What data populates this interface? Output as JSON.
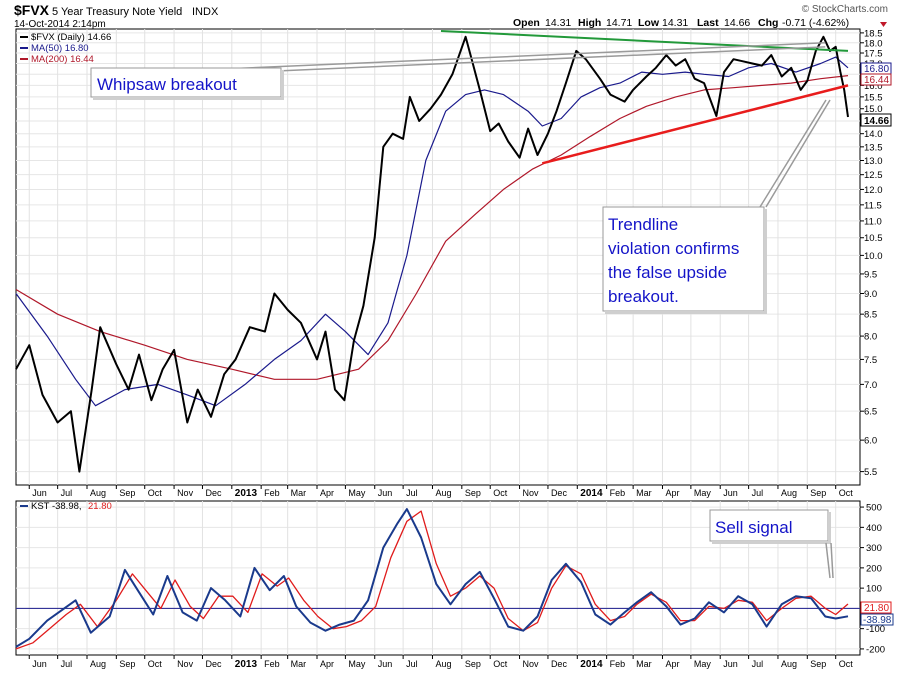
{
  "header": {
    "symbol": "$FVX",
    "description": "5 Year Treasury Note Yield",
    "exchange": "INDX",
    "datetime": "14-Oct-2014 2:14pm",
    "watermark": "© StockCharts.com",
    "quote": {
      "open_label": "Open",
      "open": "14.31",
      "high_label": "High",
      "high": "14.71",
      "low_label": "Low",
      "low": "14.31",
      "last_label": "Last",
      "last": "14.66",
      "chg_label": "Chg",
      "chg": "-0.71 (-4.62%)"
    }
  },
  "legend": {
    "price": "$FVX (Daily) 14.66",
    "ma50": "MA(50) 16.80",
    "ma200": "MA(200) 16.44"
  },
  "price_badges": {
    "ma50": "16.80",
    "ma200": "16.44",
    "last": "14.66"
  },
  "annotations": {
    "whipsaw": "Whipsaw breakout",
    "trendline": [
      "Trendline",
      "violation confirms",
      "the false  upside",
      "breakout."
    ],
    "sell": "Sell signal"
  },
  "kst_legend": {
    "label": "KST -38.98,",
    "signal": "21.80"
  },
  "kst_badges": {
    "signal": "21.80",
    "kst": "-38.98"
  },
  "colors": {
    "price": "#000000",
    "ma50": "#1a1a8c",
    "ma200": "#b0182a",
    "uptrend": "#e81c1c",
    "resistance": "#22993a",
    "annotation_text": "#1414c8",
    "kst": "#1a3a8c",
    "kst_signal": "#e01c1c",
    "zero_line": "#1a1a8c"
  },
  "chart_data": [
    {
      "type": "line",
      "title": "5 Year Treasury Note Yield",
      "ylim": [
        5.3,
        18.7
      ],
      "y_ticks": [
        5.5,
        6.0,
        6.5,
        7.0,
        7.5,
        8.0,
        8.5,
        9.0,
        9.5,
        10.0,
        10.5,
        11.0,
        11.5,
        12.0,
        12.5,
        13.0,
        13.5,
        14.0,
        14.5,
        15.0,
        15.5,
        16.0,
        16.5,
        17.0,
        17.5,
        18.0,
        18.5
      ],
      "y_log": true,
      "x_tick_labels": [
        "Jun",
        "Jul",
        "Aug",
        "Sep",
        "Oct",
        "Nov",
        "Dec",
        "2013",
        "Feb",
        "Mar",
        "Apr",
        "May",
        "Jun",
        "Jul",
        "Aug",
        "Sep",
        "Oct",
        "Nov",
        "Dec",
        "2014",
        "Feb",
        "Mar",
        "Apr",
        "May",
        "Jun",
        "Jul",
        "Aug",
        "Sep",
        "Oct"
      ],
      "x_tick_bold": [
        "2013",
        "2014"
      ],
      "series": [
        {
          "name": "$FVX (Daily)",
          "x": [
            "2012-05-18",
            "2012-06-01",
            "2012-06-15",
            "2012-07-01",
            "2012-07-15",
            "2012-07-24",
            "2012-08-06",
            "2012-08-15",
            "2012-09-01",
            "2012-09-14",
            "2012-09-25",
            "2012-10-08",
            "2012-10-20",
            "2012-11-01",
            "2012-11-15",
            "2012-11-26",
            "2012-12-10",
            "2012-12-24",
            "2013-01-05",
            "2013-01-20",
            "2013-02-05",
            "2013-02-15",
            "2013-03-01",
            "2013-03-15",
            "2013-04-01",
            "2013-04-10",
            "2013-04-20",
            "2013-04-30",
            "2013-05-10",
            "2013-05-20",
            "2013-06-01",
            "2013-06-10",
            "2013-06-20",
            "2013-07-01",
            "2013-07-08",
            "2013-07-18",
            "2013-07-30",
            "2013-08-10",
            "2013-08-22",
            "2013-09-05",
            "2013-09-12",
            "2013-09-20",
            "2013-10-01",
            "2013-10-10",
            "2013-10-20",
            "2013-11-01",
            "2013-11-10",
            "2013-11-20",
            "2013-12-01",
            "2013-12-10",
            "2013-12-20",
            "2013-12-31",
            "2014-01-10",
            "2014-01-25",
            "2014-02-05",
            "2014-02-20",
            "2014-03-01",
            "2014-03-15",
            "2014-03-25",
            "2014-04-05",
            "2014-04-15",
            "2014-04-25",
            "2014-05-05",
            "2014-05-15",
            "2014-05-28",
            "2014-06-05",
            "2014-06-15",
            "2014-06-25",
            "2014-07-05",
            "2014-07-15",
            "2014-07-25",
            "2014-08-05",
            "2014-08-15",
            "2014-08-25",
            "2014-09-01",
            "2014-09-10",
            "2014-09-18",
            "2014-09-25",
            "2014-10-01",
            "2014-10-06",
            "2014-10-10",
            "2014-10-14"
          ],
          "values": [
            7.3,
            7.8,
            6.8,
            6.3,
            6.5,
            5.5,
            6.9,
            8.2,
            7.4,
            6.9,
            7.6,
            6.7,
            7.3,
            7.7,
            6.3,
            6.9,
            6.4,
            7.2,
            7.5,
            8.2,
            8.1,
            9.0,
            8.6,
            8.3,
            7.5,
            8.1,
            6.9,
            6.7,
            7.9,
            8.7,
            10.5,
            13.5,
            14.0,
            13.8,
            15.5,
            14.5,
            15.0,
            15.6,
            16.5,
            18.3,
            17.1,
            15.8,
            14.1,
            14.4,
            13.7,
            13.1,
            14.2,
            13.2,
            14.0,
            14.9,
            16.1,
            17.6,
            17.2,
            16.3,
            15.6,
            15.3,
            15.8,
            16.4,
            16.8,
            17.4,
            16.9,
            17.2,
            16.3,
            16.1,
            14.7,
            16.6,
            17.2,
            17.1,
            17.0,
            16.9,
            17.4,
            16.4,
            16.8,
            15.8,
            16.2,
            17.6,
            18.3,
            17.6,
            17.8,
            16.6,
            15.8,
            14.66
          ]
        },
        {
          "name": "MA(50)",
          "x": [
            "2012-05-18",
            "2012-06-20",
            "2012-07-20",
            "2012-08-10",
            "2012-09-10",
            "2012-10-15",
            "2012-11-15",
            "2012-12-15",
            "2013-01-15",
            "2013-02-15",
            "2013-03-15",
            "2013-04-10",
            "2013-05-01",
            "2013-05-25",
            "2013-06-15",
            "2013-07-05",
            "2013-07-25",
            "2013-08-15",
            "2013-09-05",
            "2013-09-25",
            "2013-10-15",
            "2013-11-10",
            "2013-11-25",
            "2013-12-15",
            "2014-01-05",
            "2014-01-25",
            "2014-02-15",
            "2014-03-10",
            "2014-04-01",
            "2014-04-25",
            "2014-05-15",
            "2014-06-10",
            "2014-07-01",
            "2014-07-25",
            "2014-08-20",
            "2014-09-15",
            "2014-10-01",
            "2014-10-14"
          ],
          "values": [
            9.0,
            8.0,
            7.1,
            6.6,
            6.9,
            7.0,
            6.8,
            6.6,
            7.0,
            7.5,
            7.9,
            8.5,
            8.1,
            7.6,
            8.3,
            10.0,
            13.0,
            14.9,
            15.6,
            15.8,
            15.6,
            14.9,
            14.3,
            14.6,
            15.5,
            15.9,
            16.1,
            16.6,
            16.5,
            16.6,
            16.5,
            16.4,
            16.8,
            17.0,
            16.6,
            17.0,
            17.3,
            16.8
          ]
        },
        {
          "name": "MA(200)",
          "x": [
            "2012-05-18",
            "2012-07-01",
            "2012-08-15",
            "2012-10-01",
            "2012-11-15",
            "2013-01-01",
            "2013-02-15",
            "2013-04-01",
            "2013-05-15",
            "2013-06-15",
            "2013-07-15",
            "2013-08-15",
            "2013-09-15",
            "2013-10-15",
            "2013-11-15",
            "2013-12-15",
            "2014-01-15",
            "2014-02-15",
            "2014-03-15",
            "2014-04-15",
            "2014-05-15",
            "2014-06-15",
            "2014-07-15",
            "2014-08-15",
            "2014-09-15",
            "2014-10-14"
          ],
          "values": [
            9.1,
            8.5,
            8.1,
            7.8,
            7.5,
            7.3,
            7.1,
            7.1,
            7.3,
            7.9,
            9.0,
            10.4,
            11.2,
            12.0,
            12.7,
            13.2,
            13.9,
            14.6,
            15.1,
            15.5,
            15.8,
            15.9,
            16.0,
            16.1,
            16.3,
            16.44
          ]
        }
      ],
      "trendlines": [
        {
          "name": "resistance",
          "x": [
            "2013-08-10",
            "2014-10-14"
          ],
          "y": [
            18.6,
            17.6
          ]
        },
        {
          "name": "uptrend",
          "x": [
            "2013-11-25",
            "2014-10-14"
          ],
          "y": [
            12.9,
            16.0
          ]
        },
        {
          "name": "whipsaw-pointer-1",
          "x": [
            "2012-12-01",
            "2014-09-20"
          ],
          "y": [
            16.7,
            18.0
          ]
        },
        {
          "name": "whipsaw-pointer-2",
          "x": [
            "2012-12-01",
            "2014-09-20"
          ],
          "y": [
            16.5,
            17.8
          ]
        }
      ]
    },
    {
      "type": "line",
      "title": "KST",
      "ylim": [
        -230,
        530
      ],
      "y_ticks": [
        -200,
        -100,
        0,
        100,
        200,
        300,
        400,
        500
      ],
      "x_tick_labels": [
        "Jun",
        "Jul",
        "Aug",
        "Sep",
        "Oct",
        "Nov",
        "Dec",
        "2013",
        "Feb",
        "Mar",
        "Apr",
        "May",
        "Jun",
        "Jul",
        "Aug",
        "Sep",
        "Oct",
        "Nov",
        "Dec",
        "2014",
        "Feb",
        "Mar",
        "Apr",
        "May",
        "Jun",
        "Jul",
        "Aug",
        "Sep",
        "Oct"
      ],
      "zero_line": 0,
      "series": [
        {
          "name": "KST",
          "x": [
            "2012-05-18",
            "2012-06-01",
            "2012-06-20",
            "2012-07-05",
            "2012-07-20",
            "2012-08-05",
            "2012-08-25",
            "2012-09-10",
            "2012-09-25",
            "2012-10-10",
            "2012-10-25",
            "2012-11-10",
            "2012-11-25",
            "2012-12-10",
            "2012-12-25",
            "2013-01-10",
            "2013-01-25",
            "2013-02-10",
            "2013-02-25",
            "2013-03-10",
            "2013-03-25",
            "2013-04-10",
            "2013-04-25",
            "2013-05-10",
            "2013-05-25",
            "2013-06-10",
            "2013-06-25",
            "2013-07-05",
            "2013-07-20",
            "2013-08-05",
            "2013-08-20",
            "2013-09-05",
            "2013-09-20",
            "2013-10-05",
            "2013-10-20",
            "2013-11-05",
            "2013-11-20",
            "2013-12-05",
            "2013-12-20",
            "2014-01-05",
            "2014-01-20",
            "2014-02-05",
            "2014-02-20",
            "2014-03-05",
            "2014-03-20",
            "2014-04-05",
            "2014-04-20",
            "2014-05-05",
            "2014-05-20",
            "2014-06-05",
            "2014-06-20",
            "2014-07-05",
            "2014-07-20",
            "2014-08-05",
            "2014-08-20",
            "2014-09-05",
            "2014-09-20",
            "2014-10-01",
            "2014-10-14"
          ],
          "values": [
            -190,
            -150,
            -60,
            -10,
            40,
            -120,
            -40,
            190,
            80,
            -30,
            160,
            -20,
            -60,
            100,
            40,
            -40,
            200,
            90,
            160,
            10,
            -70,
            -110,
            -80,
            -60,
            40,
            300,
            420,
            490,
            350,
            120,
            20,
            120,
            180,
            50,
            -90,
            -110,
            -40,
            140,
            220,
            130,
            -30,
            -80,
            -20,
            30,
            80,
            10,
            -80,
            -50,
            30,
            -20,
            60,
            20,
            -90,
            20,
            60,
            50,
            -40,
            -50,
            -38.98
          ]
        },
        {
          "name": "Signal",
          "x": [
            "2012-05-18",
            "2012-06-05",
            "2012-06-25",
            "2012-07-10",
            "2012-07-25",
            "2012-08-12",
            "2012-09-01",
            "2012-09-18",
            "2012-10-02",
            "2012-10-18",
            "2012-11-02",
            "2012-11-18",
            "2012-12-02",
            "2012-12-18",
            "2013-01-02",
            "2013-01-18",
            "2013-02-02",
            "2013-02-18",
            "2013-03-02",
            "2013-03-18",
            "2013-04-02",
            "2013-04-18",
            "2013-05-02",
            "2013-05-18",
            "2013-06-02",
            "2013-06-18",
            "2013-07-05",
            "2013-07-20",
            "2013-08-05",
            "2013-08-20",
            "2013-09-05",
            "2013-09-20",
            "2013-10-05",
            "2013-10-20",
            "2013-11-05",
            "2013-11-20",
            "2013-12-05",
            "2013-12-20",
            "2014-01-05",
            "2014-01-20",
            "2014-02-05",
            "2014-02-20",
            "2014-03-05",
            "2014-03-20",
            "2014-04-05",
            "2014-04-20",
            "2014-05-05",
            "2014-05-20",
            "2014-06-05",
            "2014-06-20",
            "2014-07-05",
            "2014-07-20",
            "2014-08-05",
            "2014-08-20",
            "2014-09-05",
            "2014-09-20",
            "2014-10-01",
            "2014-10-14"
          ],
          "values": [
            -200,
            -170,
            -90,
            -30,
            20,
            -90,
            40,
            170,
            90,
            0,
            140,
            10,
            -50,
            60,
            60,
            -20,
            170,
            110,
            150,
            40,
            -40,
            -100,
            -90,
            -60,
            10,
            250,
            430,
            480,
            220,
            60,
            100,
            160,
            100,
            -50,
            -110,
            -70,
            100,
            210,
            170,
            20,
            -60,
            -40,
            20,
            70,
            30,
            -60,
            -60,
            10,
            0,
            40,
            30,
            -60,
            0,
            50,
            60,
            0,
            -30,
            21.8
          ]
        }
      ]
    }
  ]
}
